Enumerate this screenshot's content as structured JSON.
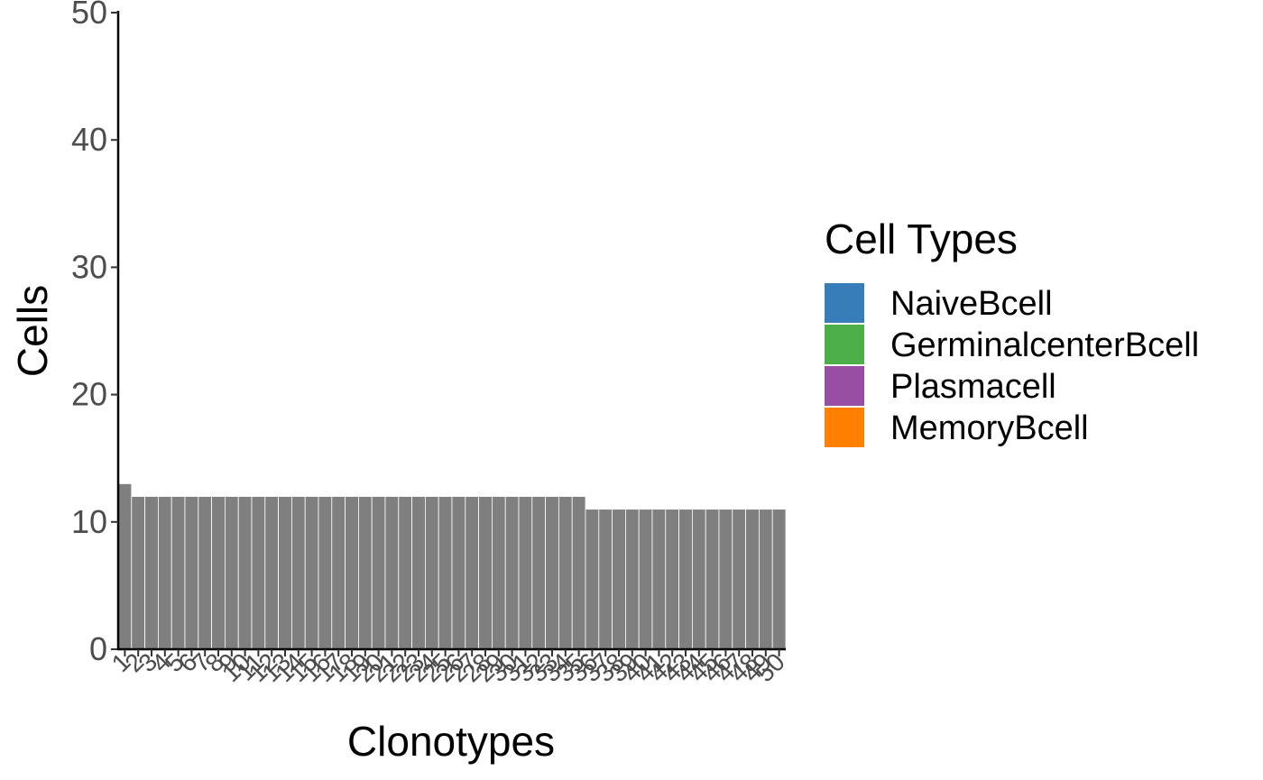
{
  "chart_data": {
    "type": "bar",
    "title": "",
    "xlabel": "Clonotypes",
    "ylabel": "Cells",
    "ylim": [
      0,
      50
    ],
    "yticks": [
      0,
      10,
      20,
      30,
      40,
      50
    ],
    "categories": [
      "1",
      "2",
      "3",
      "4",
      "5",
      "6",
      "7",
      "8",
      "9",
      "10",
      "11",
      "12",
      "13",
      "14",
      "15",
      "16",
      "17",
      "18",
      "19",
      "20",
      "21",
      "22",
      "23",
      "24",
      "25",
      "26",
      "27",
      "28",
      "29",
      "30",
      "31",
      "32",
      "33",
      "34",
      "35",
      "36",
      "37",
      "38",
      "39",
      "40",
      "41",
      "42",
      "43",
      "44",
      "45",
      "46",
      "47",
      "48",
      "49",
      "50"
    ],
    "values": [
      13,
      12,
      12,
      12,
      12,
      12,
      12,
      12,
      12,
      12,
      12,
      12,
      12,
      12,
      12,
      12,
      12,
      12,
      12,
      12,
      12,
      12,
      12,
      12,
      12,
      12,
      12,
      12,
      12,
      12,
      12,
      12,
      12,
      12,
      12,
      11,
      11,
      11,
      11,
      11,
      11,
      11,
      11,
      11,
      11,
      11,
      11,
      11,
      11,
      11
    ],
    "bar_color": "#7f7f7f",
    "grid": false,
    "legend": {
      "title": "Cell Types",
      "placement": "right",
      "items": [
        {
          "label": "NaiveBcell",
          "color": "#377eb8"
        },
        {
          "label": "GerminalcenterBcell",
          "color": "#4daf4a"
        },
        {
          "label": "Plasmacell",
          "color": "#984ea3"
        },
        {
          "label": "MemoryBcell",
          "color": "#ff7f00"
        }
      ]
    }
  }
}
